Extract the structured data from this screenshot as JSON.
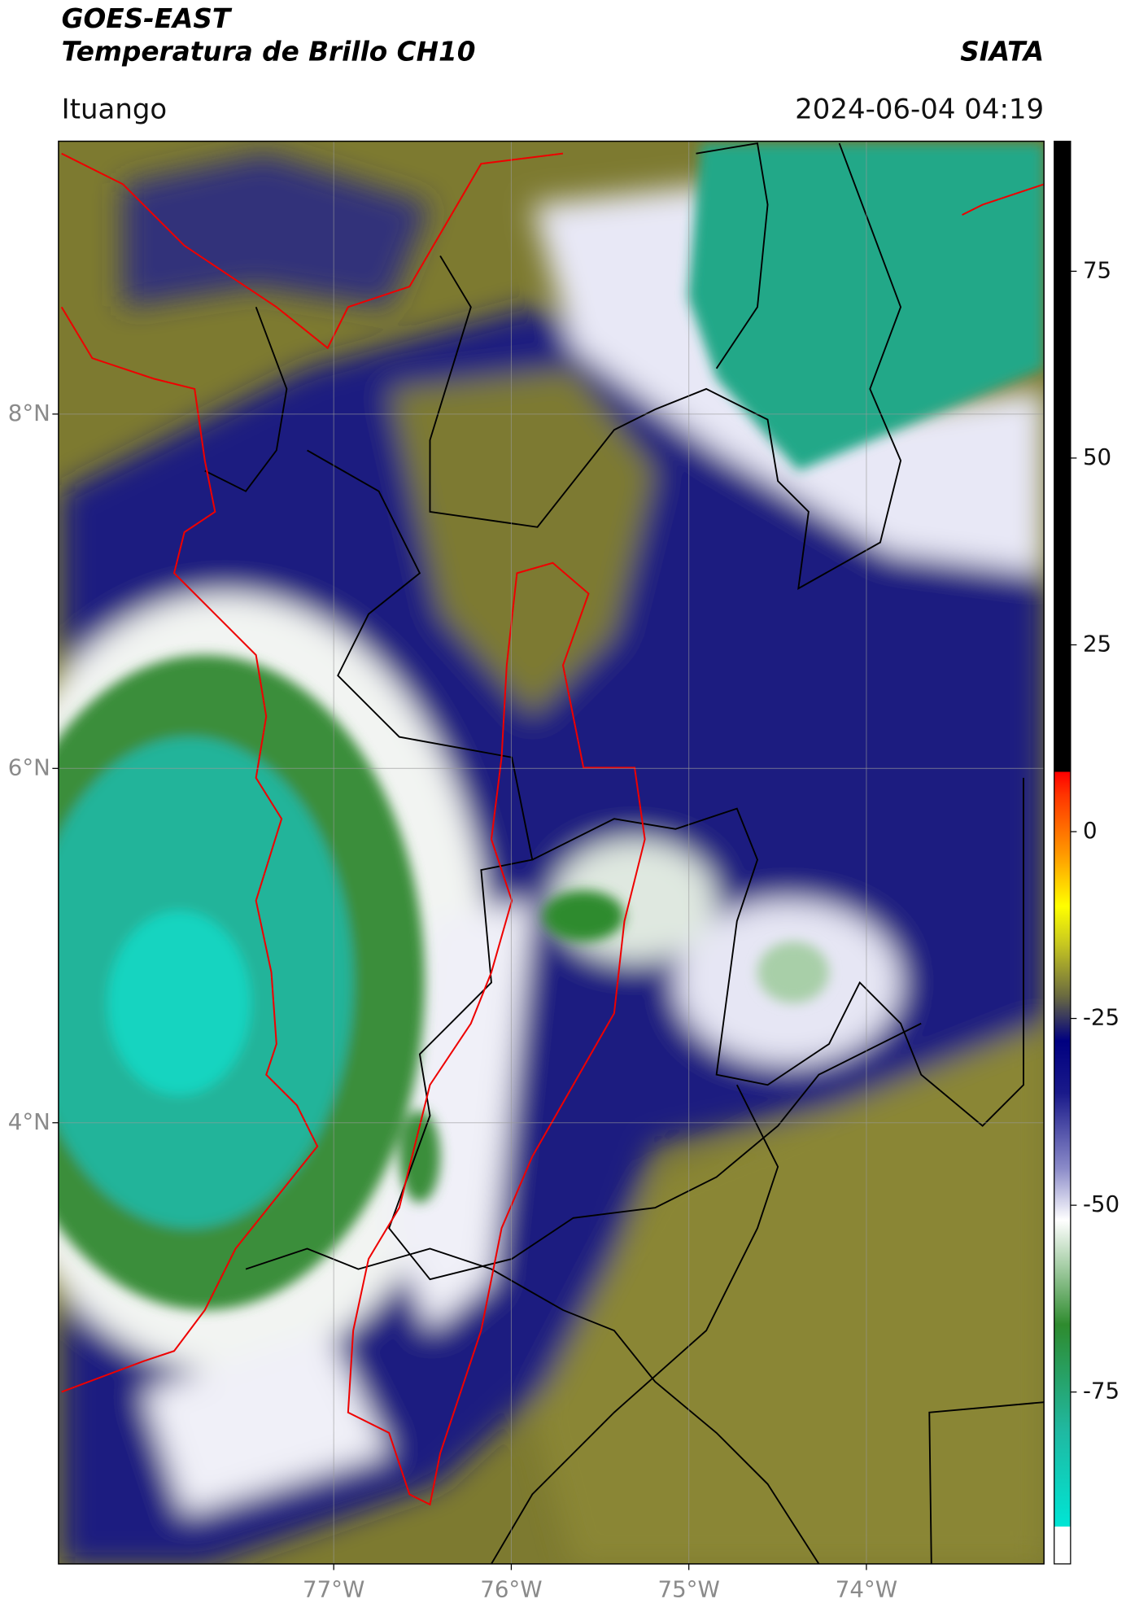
{
  "header": {
    "satellite": "GOES-EAST",
    "product": "Temperatura de Brillo CH10",
    "agency": "SIATA",
    "location": "Ituango",
    "datetime": "2024-06-04 04:19"
  },
  "map": {
    "xlim": [
      -78.55,
      -73.0
    ],
    "ylim": [
      1.51,
      9.54
    ],
    "grid": true,
    "xticks": [
      {
        "value": -77,
        "label": "77°W"
      },
      {
        "value": -76,
        "label": "76°W"
      },
      {
        "value": -75,
        "label": "75°W"
      },
      {
        "value": -74,
        "label": "74°W"
      }
    ],
    "yticks": [
      {
        "value": 8,
        "label": "8°N"
      },
      {
        "value": 6,
        "label": "6°N"
      },
      {
        "value": 4,
        "label": "4°N"
      }
    ]
  },
  "colorbar": {
    "lim": [
      -98,
      92.4
    ],
    "ticks": [
      75,
      50,
      25,
      0,
      -25,
      -50,
      -75
    ],
    "colormap": [
      {
        "value": -98,
        "color": "#ffffff"
      },
      {
        "value": -93,
        "color": "#ffffff"
      },
      {
        "value": -93,
        "color": "#00e5d5"
      },
      {
        "value": -80,
        "color": "#20b8a0"
      },
      {
        "value": -66,
        "color": "#2e8b2e"
      },
      {
        "value": -58,
        "color": "#a8cfa8"
      },
      {
        "value": -52,
        "color": "#ffffff"
      },
      {
        "value": -45,
        "color": "#8a8ac8"
      },
      {
        "value": -35,
        "color": "#1a1a8a"
      },
      {
        "value": -28,
        "color": "#000080"
      },
      {
        "value": -22,
        "color": "#6a6a40"
      },
      {
        "value": -15,
        "color": "#c8c820"
      },
      {
        "value": -10,
        "color": "#ffff00"
      },
      {
        "value": -3,
        "color": "#ff9900"
      },
      {
        "value": 5,
        "color": "#ff3300"
      },
      {
        "value": 8,
        "color": "#ff0000"
      },
      {
        "value": 8,
        "color": "#000000"
      },
      {
        "value": 92.4,
        "color": "#000000"
      }
    ]
  }
}
